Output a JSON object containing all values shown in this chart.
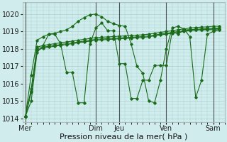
{
  "background_color": "#d0ecec",
  "grid_color": "#a8d0d0",
  "line_color": "#1a6b1a",
  "vline_color": "#444444",
  "ylim": [
    1013.8,
    1020.7
  ],
  "yticks": [
    1014,
    1015,
    1016,
    1017,
    1018,
    1019,
    1020
  ],
  "xlabel": "Pression niveau de la mer( hPa )",
  "xlabel_fontsize": 8,
  "tick_fontsize": 7,
  "x_day_labels": [
    "Mer",
    "Dim",
    "Jeu",
    "Ven",
    "Sam"
  ],
  "x_day_positions": [
    0,
    12,
    16,
    24,
    32
  ],
  "xlim": [
    -0.5,
    34
  ],
  "series_volatile1": [
    1014.1,
    1015.0,
    1017.8,
    1018.2,
    1018.85,
    1018.85,
    1018.3,
    1016.65,
    1016.65,
    1014.9,
    1014.9,
    1018.3,
    1019.2,
    1019.5,
    1019.05,
    1019.05,
    1017.15,
    1017.15,
    1015.15,
    1015.15,
    1016.2,
    1016.2,
    1017.05,
    1017.05,
    1017.05,
    1019.0,
    1018.85,
    1019.1,
    1019.1,
    1019.1,
    1019.1,
    1019.1,
    1019.1,
    1019.1
  ],
  "series_trend1": [
    1014.1,
    1015.5,
    1017.9,
    1018.05,
    1018.1,
    1018.15,
    1018.2,
    1018.25,
    1018.3,
    1018.35,
    1018.4,
    1018.45,
    1018.5,
    1018.52,
    1018.54,
    1018.56,
    1018.58,
    1018.6,
    1018.62,
    1018.64,
    1018.66,
    1018.7,
    1018.75,
    1018.8,
    1018.85,
    1018.9,
    1018.95,
    1019.0,
    1019.05,
    1019.08,
    1019.1,
    1019.12,
    1019.15,
    1019.15
  ],
  "series_trend2": [
    1014.1,
    1015.6,
    1018.0,
    1018.1,
    1018.15,
    1018.2,
    1018.25,
    1018.3,
    1018.35,
    1018.4,
    1018.45,
    1018.5,
    1018.55,
    1018.57,
    1018.59,
    1018.61,
    1018.63,
    1018.65,
    1018.67,
    1018.69,
    1018.71,
    1018.75,
    1018.8,
    1018.85,
    1018.9,
    1018.95,
    1019.0,
    1019.05,
    1019.1,
    1019.13,
    1019.15,
    1019.17,
    1019.2,
    1019.2
  ],
  "series_trend3": [
    1014.1,
    1015.7,
    1018.1,
    1018.2,
    1018.25,
    1018.3,
    1018.35,
    1018.4,
    1018.45,
    1018.5,
    1018.55,
    1018.6,
    1018.65,
    1018.67,
    1018.69,
    1018.71,
    1018.73,
    1018.75,
    1018.77,
    1018.79,
    1018.81,
    1018.85,
    1018.9,
    1018.95,
    1019.0,
    1019.05,
    1019.1,
    1019.15,
    1019.2,
    1019.23,
    1019.25,
    1019.27,
    1019.3,
    1019.3
  ],
  "series_volatile2": [
    1014.1,
    1016.5,
    1018.5,
    1018.7,
    1018.85,
    1018.9,
    1019.0,
    1019.1,
    1019.3,
    1019.6,
    1019.8,
    1019.97,
    1020.0,
    1019.85,
    1019.6,
    1019.45,
    1019.35,
    1019.3,
    1018.3,
    1017.0,
    1016.6,
    1015.0,
    1014.9,
    1016.2,
    1018.0,
    1019.2,
    1019.3,
    1019.15,
    1018.7,
    1015.2,
    1016.2,
    1018.85,
    1019.0,
    1019.1
  ]
}
